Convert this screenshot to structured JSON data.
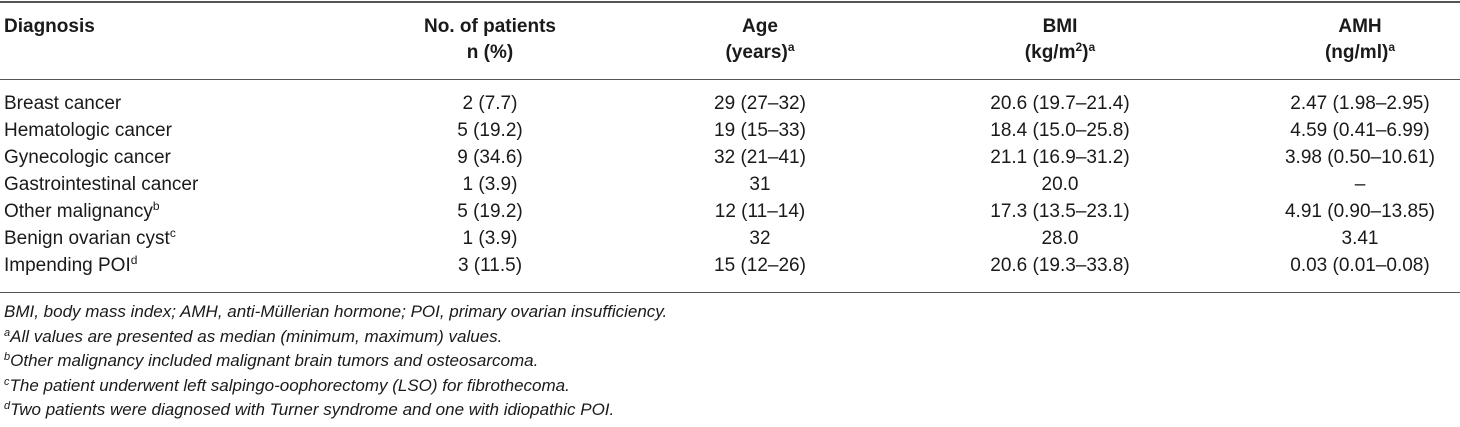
{
  "table": {
    "headers": {
      "diagnosis": "Diagnosis",
      "patients_line1": "No. of patients",
      "patients_line2": "n (%)",
      "age_line1": "Age",
      "age_line2": "(years)",
      "age_sup": "a",
      "bmi_line1": "BMI",
      "bmi_line2_pre": "(kg/m",
      "bmi_line2_sup": "2",
      "bmi_line2_post": ")",
      "bmi_sup": "a",
      "amh_line1": "AMH",
      "amh_line2": "(ng/ml)",
      "amh_sup": "a"
    },
    "rows": [
      {
        "diagnosis": "Breast cancer",
        "sup": "",
        "patients": "2 (7.7)",
        "age": "29 (27–32)",
        "bmi": "20.6 (19.7–21.4)",
        "amh": "2.47 (1.98–2.95)"
      },
      {
        "diagnosis": "Hematologic cancer",
        "sup": "",
        "patients": "5 (19.2)",
        "age": "19 (15–33)",
        "bmi": "18.4 (15.0–25.8)",
        "amh": "4.59 (0.41–6.99)"
      },
      {
        "diagnosis": "Gynecologic cancer",
        "sup": "",
        "patients": "9 (34.6)",
        "age": "32 (21–41)",
        "bmi": "21.1 (16.9–31.2)",
        "amh": "3.98 (0.50–10.61)"
      },
      {
        "diagnosis": "Gastrointestinal cancer",
        "sup": "",
        "patients": "1 (3.9)",
        "age": "31",
        "bmi": "20.0",
        "amh": "–"
      },
      {
        "diagnosis": "Other malignancy",
        "sup": "b",
        "patients": "5 (19.2)",
        "age": "12 (11–14)",
        "bmi": "17.3 (13.5–23.1)",
        "amh": "4.91 (0.90–13.85)"
      },
      {
        "diagnosis": "Benign ovarian cyst",
        "sup": "c",
        "patients": "1 (3.9)",
        "age": "32",
        "bmi": "28.0",
        "amh": "3.41"
      },
      {
        "diagnosis": "Impending POI",
        "sup": "d",
        "patients": "3 (11.5)",
        "age": "15 (12–26)",
        "bmi": "20.6 (19.3–33.8)",
        "amh": "0.03 (0.01–0.08)"
      }
    ]
  },
  "footnotes": [
    {
      "sup": "",
      "text": "BMI, body mass index; AMH, anti-Müllerian hormone; POI, primary ovarian insufficiency."
    },
    {
      "sup": "a",
      "text": "All values are presented as median (minimum, maximum) values."
    },
    {
      "sup": "b",
      "text": "Other malignancy included malignant brain tumors and osteosarcoma."
    },
    {
      "sup": "c",
      "text": "The patient underwent left salpingo-oophorectomy (LSO) for fibrothecoma."
    },
    {
      "sup": "d",
      "text": "Two patients were diagnosed with Turner syndrome and one with idiopathic POI."
    }
  ]
}
